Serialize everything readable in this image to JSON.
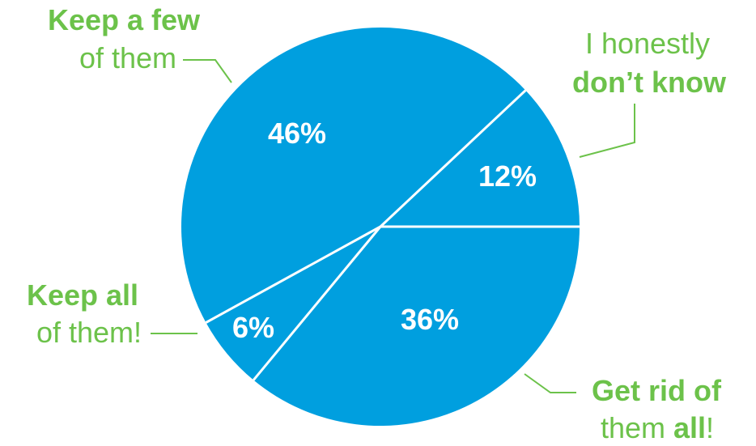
{
  "chart_data": {
    "type": "pie",
    "title": "",
    "colors": {
      "slice": "#009fdf",
      "divider": "#ffffff",
      "label": "#6cc24a",
      "percent_text": "#ffffff"
    },
    "slices": [
      {
        "value": 12,
        "percent_label": "12%",
        "label_line1": "I honestly",
        "label_line2": "don’t know",
        "line1_bold": false,
        "line2_bold": true
      },
      {
        "value": 46,
        "percent_label": "46%",
        "label_line1": "Keep a few",
        "label_line2": "of them",
        "line1_bold": true,
        "line2_bold": false
      },
      {
        "value": 6,
        "percent_label": "6%",
        "label_line1": "Keep all",
        "label_line2": "of them!",
        "line1_bold": true,
        "line2_bold": false
      },
      {
        "value": 36,
        "percent_label": "36%",
        "label_line1": "Get rid of",
        "label_line2_prefix": "them ",
        "label_line2_bold": "all",
        "label_line2_suffix": "!",
        "line1_bold": true,
        "line2_bold": false
      }
    ]
  }
}
